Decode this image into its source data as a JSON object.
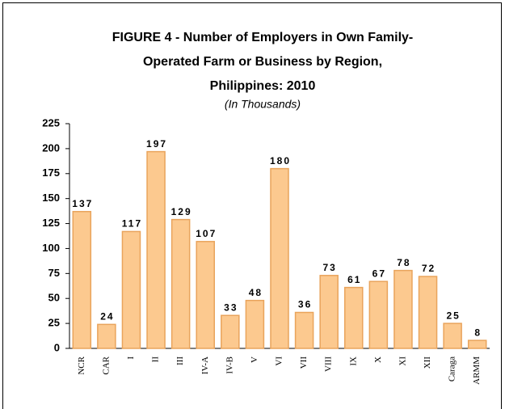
{
  "chart_data": {
    "type": "bar",
    "title": [
      "FIGURE 4 - Number of Employers in Own Family-",
      "Operated Farm or Business by Region,",
      "Philippines: 2010"
    ],
    "subtitle": "(In Thousands)",
    "categories": [
      "NCR",
      "CAR",
      "I",
      "II",
      "III",
      "IV-A",
      "IV-B",
      "V",
      "VI",
      "VII",
      "VIII",
      "IX",
      "X",
      "XI",
      "XII",
      "Caraga",
      "ARMM"
    ],
    "values": [
      137,
      24,
      117,
      197,
      129,
      107,
      33,
      48,
      180,
      36,
      73,
      61,
      67,
      78,
      72,
      25,
      8
    ],
    "color": "#fcc98f",
    "ylim": [
      0,
      225
    ],
    "yticks": [
      0,
      25,
      50,
      75,
      100,
      125,
      150,
      175,
      200,
      225
    ],
    "grid": false
  }
}
